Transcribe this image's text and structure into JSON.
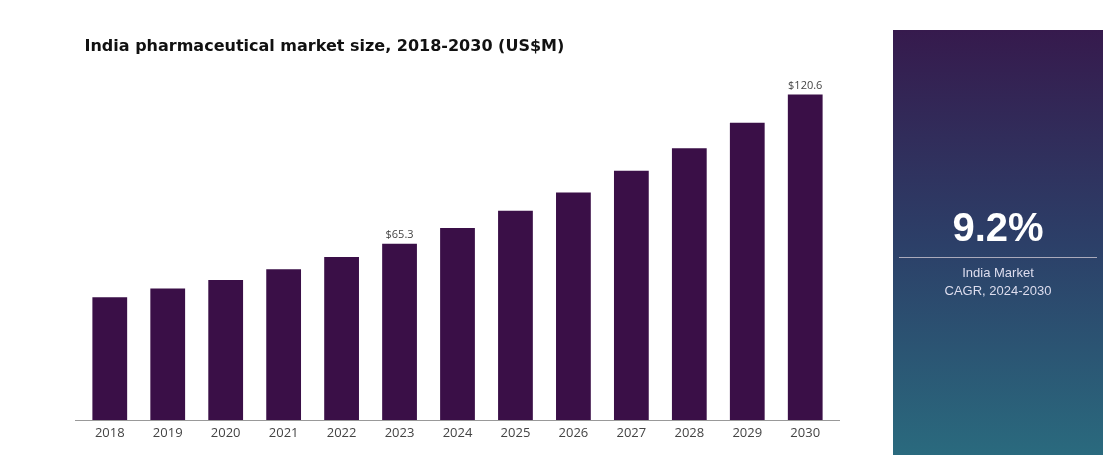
{
  "chart_data": [
    {
      "type": "bar",
      "title": "India pharmaceutical market size, 2018-2030 (US$M)",
      "categories": [
        "2018",
        "2019",
        "2020",
        "2021",
        "2022",
        "2023",
        "2024",
        "2025",
        "2026",
        "2027",
        "2028",
        "2029",
        "2030"
      ],
      "values": [
        45.5,
        48.7,
        51.9,
        55.9,
        60.4,
        65.3,
        71.1,
        77.5,
        84.3,
        92.4,
        100.7,
        110.1,
        120.6
      ],
      "value_labels": [
        null,
        null,
        null,
        null,
        null,
        "$65.3",
        null,
        null,
        null,
        null,
        null,
        null,
        "$120.6"
      ],
      "color": "#3a0f47",
      "tick_labels": "x"
    },
    {
      "type": "other",
      "title": "9.2%",
      "annotations": [
        "India Market",
        "CAGR, 2024-2030"
      ]
    }
  ]
}
